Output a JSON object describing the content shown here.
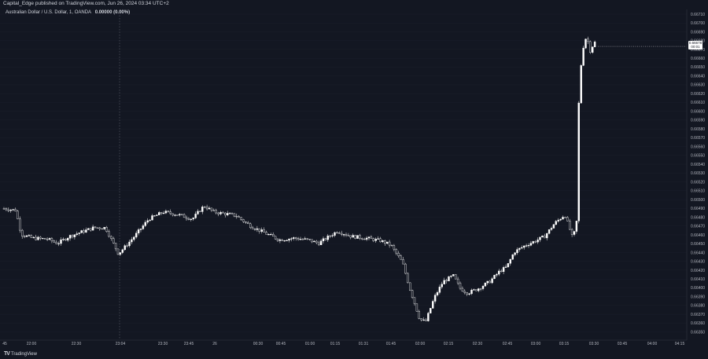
{
  "header": {
    "publish_text": "Capital_Edge published on TradingView.com, Jun 26, 2024 03:34 UTC+2"
  },
  "legend": {
    "symbol": "Australian Dollar / U.S. Dollar, 1, OANDA",
    "change": "0.00000 (0.00%)"
  },
  "brand": {
    "logo": "TV",
    "name": "TradingView"
  },
  "price_tag": {
    "price": "0.66678",
    "countdown": "00:01"
  },
  "colors": {
    "background": "#131722",
    "candle_up": "#ffffff",
    "candle_down": "#ffffff",
    "grid": "#1e222d",
    "axis_text": "#b2b5be"
  },
  "chart_data": {
    "type": "candlestick",
    "ylim": [
      0.6635,
      0.66715
    ],
    "y_ticks": [
      "0.66710",
      "0.66700",
      "0.66690",
      "0.66680",
      "0.66670",
      "0.66660",
      "0.66650",
      "0.66640",
      "0.66630",
      "0.66620",
      "0.66610",
      "0.66600",
      "0.66590",
      "0.66580",
      "0.66570",
      "0.66560",
      "0.66550",
      "0.66540",
      "0.66530",
      "0.66520",
      "0.66510",
      "0.66500",
      "0.66490",
      "0.66480",
      "0.66470",
      "0.66460",
      "0.66450",
      "0.66440",
      "0.66430",
      "0.66420",
      "0.66410",
      "0.66400",
      "0.66390",
      "0.66380",
      "0.66370",
      "0.66360",
      "0.66350"
    ],
    "x_ticks": [
      "45",
      "22:00",
      "22:30",
      "23:04",
      "23:30",
      "23:45",
      "26",
      "00:30",
      "00:45",
      "01:00",
      "01:15",
      "01:31",
      "01:45",
      "02:00",
      "02:15",
      "02:30",
      "02:45",
      "03:00",
      "03:15",
      "03:30",
      "03:45",
      "04:00",
      "04:15"
    ],
    "session_break_label": "23:04",
    "close_path": [
      [
        "21:45",
        0.66492
      ],
      [
        "21:53",
        0.6649
      ],
      [
        "21:57",
        0.66462
      ],
      [
        "22:05",
        0.66458
      ],
      [
        "22:15",
        0.66457
      ],
      [
        "22:22",
        0.66452
      ],
      [
        "22:30",
        0.6646
      ],
      [
        "22:40",
        0.66466
      ],
      [
        "22:47",
        0.6647
      ],
      [
        "22:55",
        0.6647
      ],
      [
        "23:04",
        0.6644
      ],
      [
        "23:08",
        0.66447
      ],
      [
        "23:15",
        0.6646
      ],
      [
        "23:25",
        0.6648
      ],
      [
        "23:35",
        0.66488
      ],
      [
        "23:45",
        0.66485
      ],
      [
        "23:55",
        0.6648
      ],
      [
        "24:03",
        0.66495
      ],
      [
        "24:10",
        0.66488
      ],
      [
        "24:25",
        0.66484
      ],
      [
        "24:35",
        0.66472
      ],
      [
        "24:45",
        0.66464
      ],
      [
        "24:55",
        0.66456
      ],
      [
        "25:05",
        0.66458
      ],
      [
        "25:15",
        0.66456
      ],
      [
        "25:22",
        0.66452
      ],
      [
        "25:35",
        0.66466
      ],
      [
        "25:45",
        0.6646
      ],
      [
        "25:55",
        0.66458
      ],
      [
        "26:05",
        0.66455
      ],
      [
        "26:12",
        0.6645
      ],
      [
        "26:20",
        0.6643
      ],
      [
        "26:25",
        0.664
      ],
      [
        "26:32",
        0.66365
      ],
      [
        "26:36",
        0.66362
      ],
      [
        "26:42",
        0.6639
      ],
      [
        "26:48",
        0.66408
      ],
      [
        "26:55",
        0.66415
      ],
      [
        "27:00",
        0.664
      ],
      [
        "27:05",
        0.66395
      ],
      [
        "27:12",
        0.664
      ],
      [
        "27:20",
        0.66408
      ],
      [
        "27:27",
        0.6642
      ],
      [
        "27:32",
        0.66425
      ],
      [
        "27:37",
        0.66442
      ],
      [
        "27:45",
        0.6645
      ],
      [
        "27:52",
        0.66455
      ],
      [
        "27:58",
        0.6646
      ],
      [
        "28:05",
        0.66475
      ],
      [
        "28:12",
        0.66485
      ],
      [
        "28:17",
        0.6646
      ],
      [
        "28:20",
        0.66468
      ],
      [
        "28:22",
        0.6664
      ],
      [
        "28:25",
        0.6668
      ],
      [
        "28:27",
        0.6669
      ],
      [
        "28:30",
        0.6667
      ],
      [
        "28:32",
        0.66685
      ],
      [
        "28:34",
        0.66678
      ]
    ],
    "last_price": 0.66678
  }
}
